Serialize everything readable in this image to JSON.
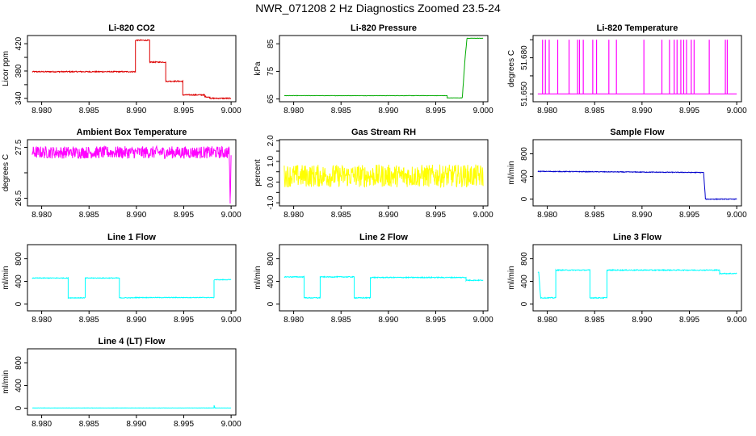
{
  "title": "NWR_071208  2 Hz Diagnostics Zoomed 23.5-24",
  "x_tick_labels": [
    "8.980",
    "8.985",
    "8.990",
    "8.995",
    "9.000"
  ],
  "chart_data": [
    {
      "type": "line",
      "title": "Li-820 CO2",
      "ylabel": "Licor ppm",
      "color": "#dd0000",
      "xlim": [
        8.9785,
        9.0005
      ],
      "ylim": [
        335,
        432
      ],
      "yticks": [
        340,
        360,
        380,
        400,
        420
      ],
      "ytick_labels": [
        "340",
        "",
        "380",
        "",
        "420"
      ],
      "series": [
        {
          "noise": 0.8,
          "x": [
            8.979,
            8.9899,
            8.9899,
            8.9914,
            8.9914,
            8.9931,
            8.9931,
            8.9949,
            8.9949,
            8.9972,
            8.9972,
            8.9978,
            8.9978,
            9.0
          ]
        },
        {
          "y": [
            379,
            379,
            425,
            425,
            393,
            393,
            365,
            365,
            345,
            345,
            343,
            341,
            340,
            340
          ]
        }
      ]
    },
    {
      "type": "line",
      "title": "Li-820 Pressure",
      "ylabel": "kPa",
      "color": "#00aa00",
      "xlim": [
        8.9785,
        9.0005
      ],
      "ylim": [
        64,
        88
      ],
      "yticks": [
        65,
        75,
        85
      ],
      "ytick_labels": [
        "65",
        "75",
        "85"
      ],
      "series": [
        {
          "noise": 0.05,
          "x": [
            8.979,
            8.9962,
            8.9962,
            8.9978,
            8.9981,
            8.9983,
            9.0
          ]
        },
        {
          "y": [
            66.2,
            66.2,
            65.4,
            65.4,
            80,
            87,
            87
          ]
        }
      ]
    },
    {
      "type": "spikes",
      "title": "Li-820 Temperature",
      "ylabel": "degrees C",
      "color": "#ff00ff",
      "xlim": [
        8.9785,
        9.0005
      ],
      "ylim": [
        51.6435,
        51.6985
      ],
      "yticks": [
        51.65,
        51.665,
        51.68,
        51.695
      ],
      "ytick_labels": [
        "51.650",
        "",
        "51.680",
        ""
      ],
      "baseline": 51.65,
      "peak": 51.695,
      "spike_x": [
        8.9795,
        8.9798,
        8.9802,
        8.9811,
        8.9823,
        8.9832,
        8.9834,
        8.9838,
        8.9848,
        8.9852,
        8.9865,
        8.9873,
        8.9902,
        8.9921,
        8.9929,
        8.9934,
        8.9937,
        8.9941,
        8.9944,
        8.9947,
        8.9952,
        8.9955,
        8.9971,
        8.9988,
        8.999
      ]
    },
    {
      "type": "line",
      "title": "Ambient Box Temperature",
      "ylabel": "degrees C",
      "color": "#ff00ff",
      "xlim": [
        8.9785,
        9.0005
      ],
      "ylim": [
        26.35,
        27.65
      ],
      "yticks": [
        26.5,
        27.0,
        27.5
      ],
      "ytick_labels": [
        "26.5",
        "",
        "27.5"
      ],
      "series": [
        {
          "noise": 0.12,
          "x": [
            8.979,
            8.9998,
            8.9999,
            9.0
          ]
        },
        {
          "y": [
            27.4,
            27.4,
            26.4,
            27.4
          ]
        }
      ]
    },
    {
      "type": "line",
      "title": "Gas Stream RH",
      "ylabel": "percent",
      "color": "#ffff00",
      "xlim": [
        8.9785,
        9.0005
      ],
      "ylim": [
        -1.15,
        2.05
      ],
      "yticks": [
        -1.0,
        -0.5,
        0.0,
        0.5,
        1.0,
        1.5,
        2.0
      ],
      "ytick_labels": [
        "-1.0",
        "",
        "0.0",
        "",
        "1.0",
        "",
        "2.0"
      ],
      "series": [
        {
          "noise": 0.55,
          "x": [
            8.979,
            9.0
          ]
        },
        {
          "y": [
            0.3,
            0.3
          ]
        }
      ]
    },
    {
      "type": "line",
      "title": "Sample Flow",
      "ylabel": "ml/min",
      "color": "#0000cc",
      "xlim": [
        8.9785,
        9.0005
      ],
      "ylim": [
        -120,
        1050
      ],
      "yticks": [
        0,
        400,
        800
      ],
      "ytick_labels": [
        "0",
        "400",
        "800"
      ],
      "series": [
        {
          "noise": 6,
          "x": [
            8.979,
            8.9965,
            8.9967,
            9.0
          ]
        },
        {
          "y": [
            490,
            470,
            0,
            0
          ]
        }
      ]
    },
    {
      "type": "line",
      "title": "Line 1 Flow",
      "ylabel": "ml/min",
      "color": "#00ffff",
      "xlim": [
        8.9785,
        9.0005
      ],
      "ylim": [
        -120,
        1050
      ],
      "yticks": [
        0,
        400,
        800
      ],
      "ytick_labels": [
        "0",
        "400",
        "800"
      ],
      "series": [
        {
          "noise": 6,
          "x": [
            8.979,
            8.9828,
            8.9828,
            8.9846,
            8.9846,
            8.9882,
            8.9882,
            8.9898,
            8.9898,
            8.9982,
            8.9982,
            9.0
          ]
        },
        {
          "y": [
            460,
            460,
            110,
            110,
            460,
            460,
            110,
            110,
            115,
            115,
            430,
            430
          ]
        }
      ]
    },
    {
      "type": "line",
      "title": "Line 2 Flow",
      "ylabel": "ml/min",
      "color": "#00ffff",
      "xlim": [
        8.9785,
        9.0005
      ],
      "ylim": [
        -120,
        1050
      ],
      "yticks": [
        0,
        400,
        800
      ],
      "ytick_labels": [
        "0",
        "400",
        "800"
      ],
      "series": [
        {
          "noise": 8,
          "x": [
            8.979,
            8.9811,
            8.9811,
            8.9828,
            8.9828,
            8.9864,
            8.9864,
            8.9881,
            8.9881,
            8.9982,
            8.9982,
            9.0
          ]
        },
        {
          "y": [
            480,
            480,
            110,
            110,
            480,
            480,
            110,
            110,
            470,
            470,
            420,
            420
          ]
        }
      ]
    },
    {
      "type": "line",
      "title": "Line 3 Flow",
      "ylabel": "ml/min",
      "color": "#00ffff",
      "xlim": [
        8.9785,
        9.0005
      ],
      "ylim": [
        -120,
        1050
      ],
      "yticks": [
        0,
        400,
        800
      ],
      "ytick_labels": [
        "0",
        "400",
        "800"
      ],
      "series": [
        {
          "noise": 8,
          "x": [
            8.979,
            8.9791,
            8.9793,
            8.9809,
            8.9809,
            8.9845,
            8.9845,
            8.9863,
            8.9863,
            8.9982,
            8.9982,
            9.0
          ]
        },
        {
          "y": [
            560,
            560,
            110,
            110,
            600,
            600,
            110,
            110,
            600,
            600,
            540,
            540
          ]
        }
      ]
    },
    {
      "type": "line",
      "title": "Line 4 (LT) Flow",
      "ylabel": "ml/min",
      "color": "#00ffff",
      "xlim": [
        8.9785,
        9.0005
      ],
      "ylim": [
        -120,
        1050
      ],
      "yticks": [
        0,
        400,
        800
      ],
      "ytick_labels": [
        "0",
        "400",
        "800"
      ],
      "series": [
        {
          "noise": 2,
          "x": [
            8.979,
            8.9982,
            8.9982,
            8.9983,
            8.9984,
            9.0
          ]
        },
        {
          "y": [
            5,
            5,
            50,
            5,
            5,
            5
          ]
        }
      ]
    }
  ]
}
